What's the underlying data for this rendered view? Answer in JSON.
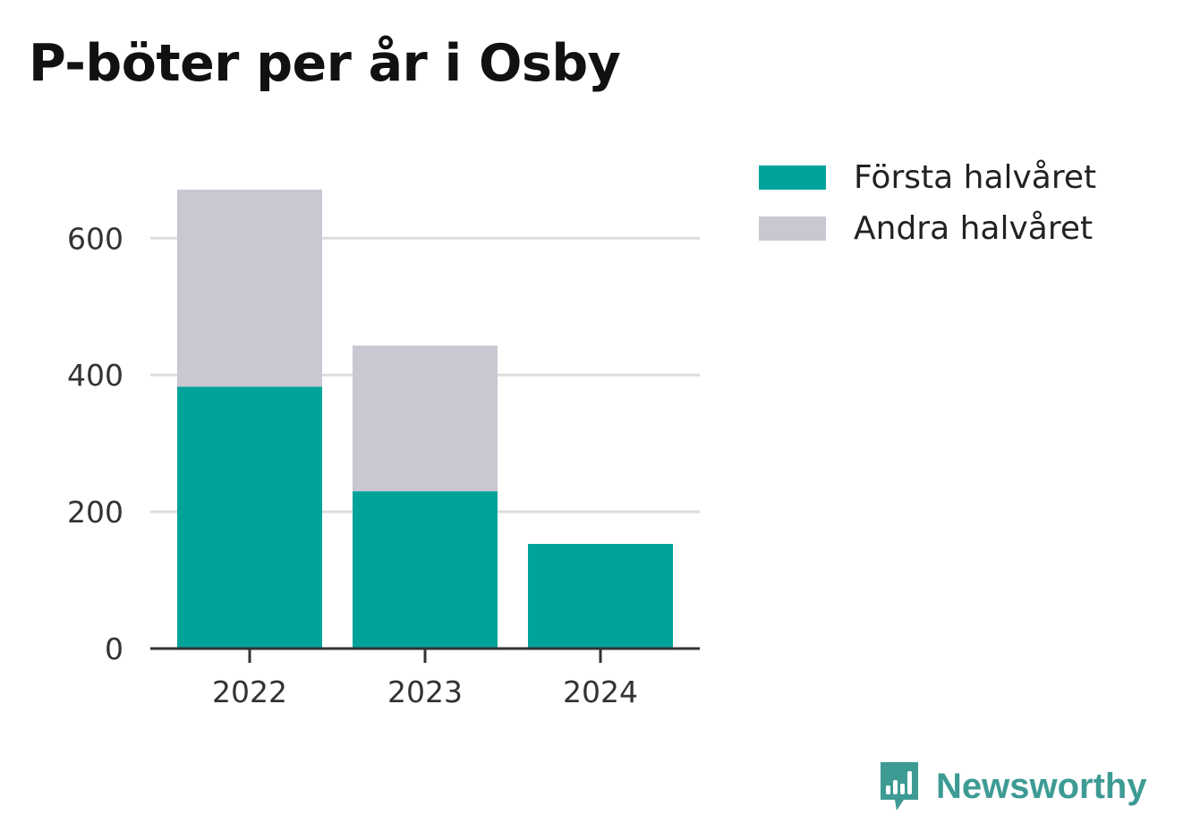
{
  "title": "P-böter per år i Osby",
  "brand": {
    "name": "Newsworthy",
    "icon": "newsworthy-logo-icon",
    "color": "#3d9b94"
  },
  "chart_data": {
    "type": "bar",
    "stacked": true,
    "title": "P-böter per år i Osby",
    "xlabel": "",
    "ylabel": "",
    "categories": [
      "2022",
      "2023",
      "2024"
    ],
    "series": [
      {
        "name": "Första halvåret",
        "color": "#00a39a",
        "values": [
          383,
          230,
          153
        ]
      },
      {
        "name": "Andra halvåret",
        "color": "#c8c7d2",
        "values": [
          288,
          213,
          null
        ]
      }
    ],
    "ylim": [
      0,
      671
    ],
    "yticks": [
      0,
      200,
      400,
      600
    ],
    "grid": true,
    "legend": "right"
  }
}
